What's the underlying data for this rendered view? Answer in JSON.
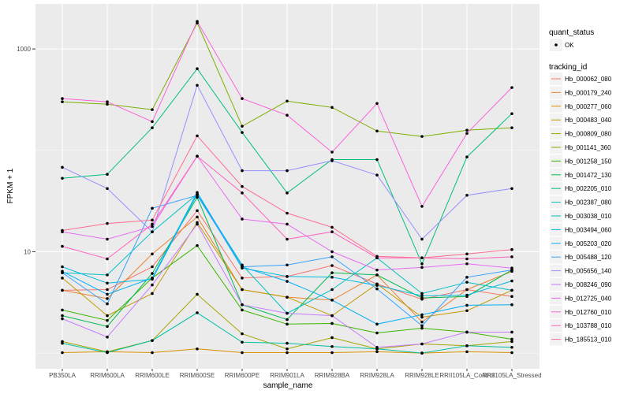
{
  "chart_data": {
    "type": "line",
    "xlabel": "sample_name",
    "ylabel": "FPKM + 1",
    "y_scale": "log10",
    "ylim": [
      0.7,
      2780
    ],
    "y_ticks": [
      10,
      1000
    ],
    "y_tick_labels": [
      "10",
      "1000"
    ],
    "grid": true,
    "legend_position": "right",
    "categories": [
      "PB350LA",
      "RRIM600LA",
      "RRIM600LE",
      "RRIM600SE",
      "RRIM600PE",
      "RRIM901LA",
      "RRIM928BA",
      "RRIM928LA",
      "RRIM928LE",
      "RRII105LA_Control",
      "RRII105LA_Stressed"
    ],
    "shape_legend": {
      "title": "quant_status",
      "items": [
        "OK"
      ]
    },
    "color_legend_title": "tracking_id",
    "series": [
      {
        "name": "Hb_000062_080",
        "color": "#F8766D",
        "values": [
          4.16,
          4.23,
          7.1,
          25.4,
          5.5,
          5.7,
          7.3,
          4.8,
          3.4,
          4.23,
          3.62
        ]
      },
      {
        "name": "Hb_000179_240",
        "color": "#EA8331",
        "values": [
          4.16,
          3.45,
          9.5,
          22,
          4.23,
          3.56,
          3.33,
          5.9,
          2.03,
          4.23,
          6.4
        ]
      },
      {
        "name": "Hb_000277_060",
        "color": "#D89000",
        "values": [
          1.01,
          1.03,
          1.01,
          1.1,
          1.01,
          1.01,
          1.01,
          1.03,
          1.0,
          1.03,
          1.01
        ]
      },
      {
        "name": "Hb_000483_040",
        "color": "#C09B00",
        "values": [
          5.5,
          2.34,
          3.87,
          19.4,
          4.23,
          3.56,
          2.34,
          4.8,
          2.26,
          2.62,
          4.16
        ]
      },
      {
        "name": "Hb_000809_080",
        "color": "#A3A500",
        "values": [
          1.3,
          1.03,
          1.33,
          3.8,
          1.55,
          1.1,
          1.42,
          1.1,
          1.23,
          1.18,
          1.3
        ]
      },
      {
        "name": "Hb_001141_360",
        "color": "#7CAE00",
        "values": [
          301,
          285,
          252,
          1806,
          173,
          306,
          265,
          155,
          137,
          158,
          167
        ]
      },
      {
        "name": "Hb_001258_150",
        "color": "#39B600",
        "values": [
          2.66,
          2.1,
          5.5,
          11.5,
          2.66,
          1.93,
          1.96,
          1.58,
          1.76,
          1.61,
          1.37
        ]
      },
      {
        "name": "Hb_001472_130",
        "color": "#00BB4E",
        "values": [
          2.34,
          1.83,
          6.1,
          34.4,
          3.0,
          2.14,
          6.2,
          5.9,
          3.5,
          3.62,
          6.6
        ]
      },
      {
        "name": "Hb_002205_010",
        "color": "#00BF7D",
        "values": [
          53,
          58,
          167,
          638,
          150,
          38,
          81,
          81,
          7.6,
          86,
          230
        ]
      },
      {
        "name": "Hb_002387_080",
        "color": "#00C1A3",
        "values": [
          1.25,
          1.01,
          1.33,
          2.5,
          1.28,
          1.25,
          1.16,
          1.1,
          1.0,
          1.18,
          1.14
        ]
      },
      {
        "name": "Hb_003038_010",
        "color": "#00BFC4",
        "values": [
          6.2,
          5.9,
          15.7,
          37,
          7.4,
          2.47,
          4.23,
          8.7,
          3.87,
          5.0,
          4.16
        ]
      },
      {
        "name": "Hb_003494_060",
        "color": "#00BAE0",
        "values": [
          7.1,
          4.9,
          5.35,
          37,
          6.9,
          5.7,
          5.6,
          4.65,
          3.67,
          3.73,
          5.15
        ]
      },
      {
        "name": "Hb_005203_020",
        "color": "#00B0F6",
        "values": [
          6.4,
          3.8,
          5.5,
          38.4,
          7.1,
          5.1,
          3.33,
          1.93,
          2.39,
          2.96,
          3.0
        ]
      },
      {
        "name": "Hb_005488_120",
        "color": "#35A2FF",
        "values": [
          6.2,
          3.06,
          26.8,
          36,
          7.1,
          7.4,
          8.9,
          4.3,
          1.86,
          5.6,
          6.6
        ]
      },
      {
        "name": "Hb_005656_140",
        "color": "#9590FF",
        "values": [
          68,
          42,
          15.7,
          438,
          63,
          63,
          79,
          57,
          13.3,
          36,
          42
        ]
      },
      {
        "name": "Hb_008246_090",
        "color": "#C77CFF",
        "values": [
          2.18,
          1.44,
          4.7,
          18.7,
          3.0,
          2.47,
          2.34,
          1.14,
          1.23,
          1.61,
          1.61
        ]
      },
      {
        "name": "Hb_012725_040",
        "color": "#E76BF3",
        "values": [
          15.7,
          13.3,
          17.7,
          87.5,
          21,
          18.7,
          10,
          6.6,
          7.0,
          7.6,
          6.9
        ]
      },
      {
        "name": "Hb_012760_010",
        "color": "#FA62DB",
        "values": [
          324,
          301,
          192,
          1871,
          324,
          222,
          96,
          290,
          28,
          147,
          416
        ]
      },
      {
        "name": "Hb_103788_010",
        "color": "#FF62BC",
        "values": [
          11.3,
          8.5,
          18.7,
          87.5,
          38,
          13.3,
          15.7,
          8.7,
          8.7,
          8.5,
          8.9
        ]
      },
      {
        "name": "Hb_185513_010",
        "color": "#FF6C91",
        "values": [
          16.2,
          19,
          20.5,
          139,
          44,
          24,
          17.4,
          9.0,
          8.7,
          9.5,
          10.5
        ]
      }
    ]
  }
}
